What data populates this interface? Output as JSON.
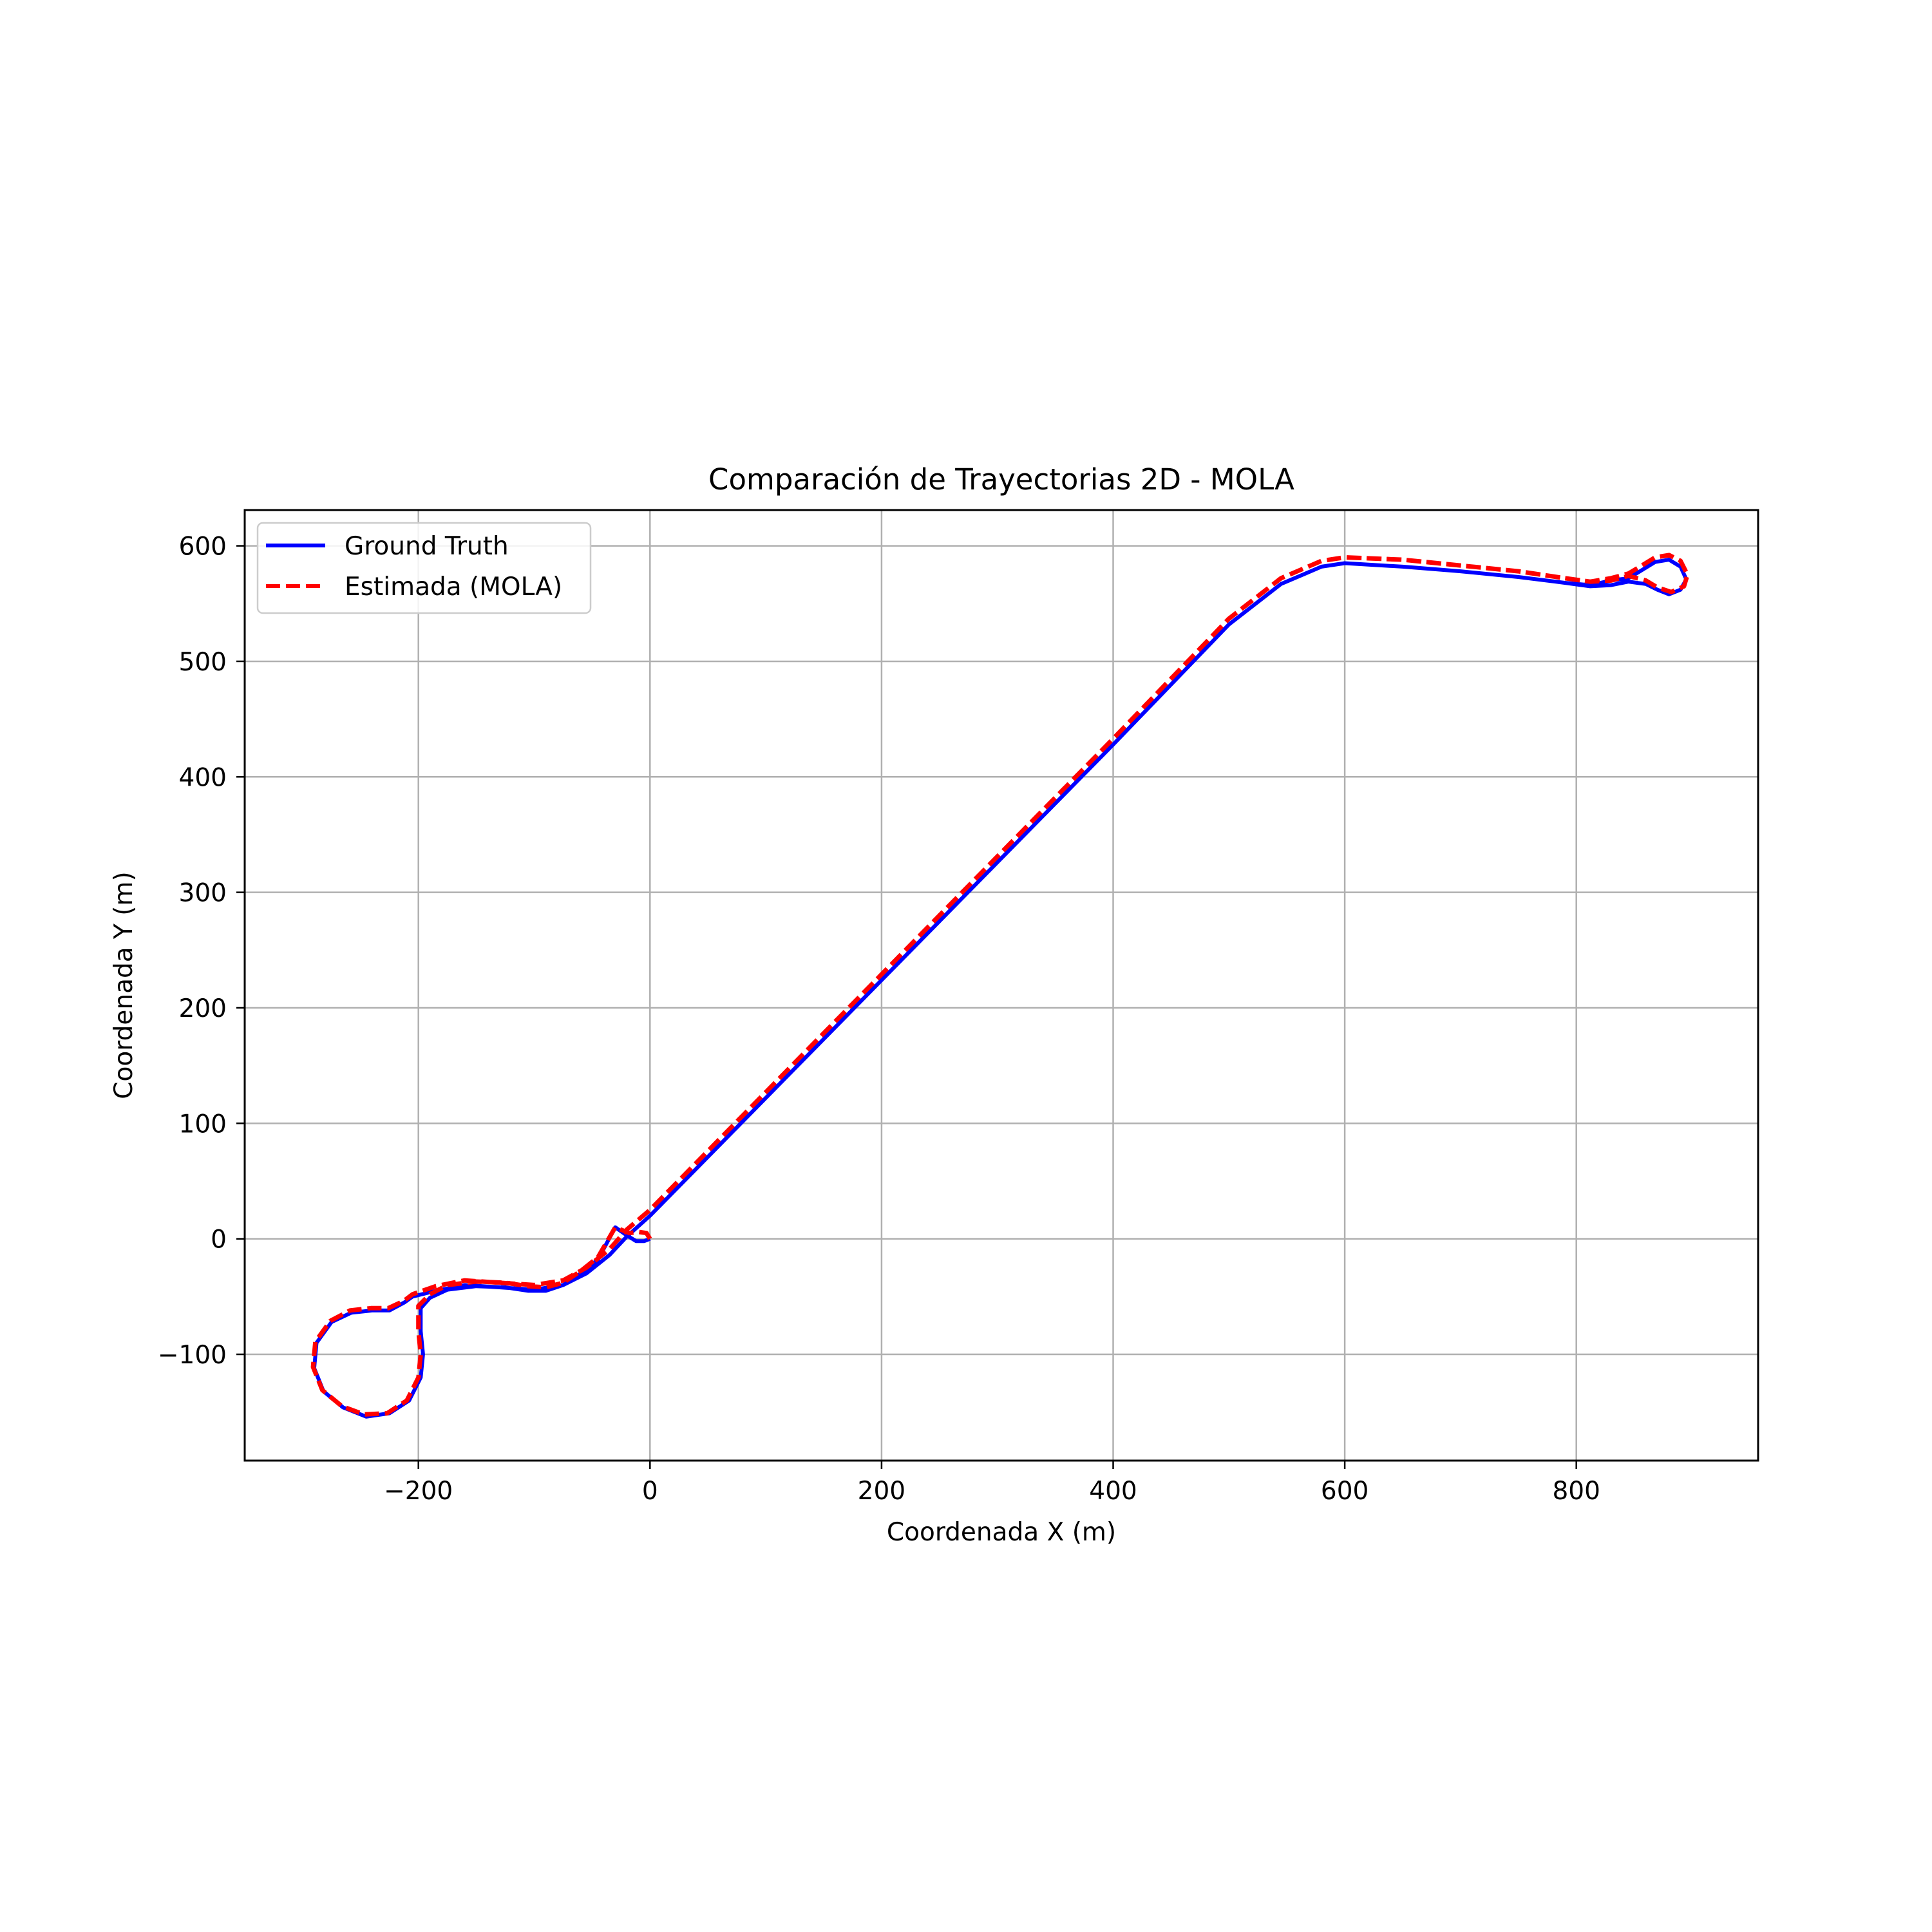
{
  "chart_data": {
    "type": "line",
    "title": "Comparación de Trayectorias 2D - MOLA",
    "xlabel": "Coordenada X (m)",
    "ylabel": "Coordenada Y (m)",
    "xlim": [
      -350,
      957
    ],
    "ylim": [
      -192,
      631
    ],
    "x_ticks": [
      -200,
      0,
      200,
      400,
      600,
      800
    ],
    "y_ticks": [
      -100,
      0,
      100,
      200,
      300,
      400,
      500,
      600
    ],
    "x_tick_labels": [
      "−200",
      "0",
      "200",
      "400",
      "600",
      "800"
    ],
    "y_tick_labels": [
      "−100",
      "0",
      "100",
      "200",
      "300",
      "400",
      "500",
      "600"
    ],
    "grid": true,
    "legend_position": "upper-left",
    "series": [
      {
        "name": "Ground Truth",
        "color": "#0000ff",
        "style": "solid",
        "points": [
          [
            0,
            0
          ],
          [
            -5,
            -2
          ],
          [
            -12,
            -2
          ],
          [
            -20,
            3
          ],
          [
            -30,
            10
          ],
          [
            -45,
            -18
          ],
          [
            -60,
            -30
          ],
          [
            -75,
            -40
          ],
          [
            -90,
            -45
          ],
          [
            -105,
            -45
          ],
          [
            -125,
            -42
          ],
          [
            -150,
            -41
          ],
          [
            -175,
            -44
          ],
          [
            -190,
            -51
          ],
          [
            -198,
            -60
          ],
          [
            -198,
            -80
          ],
          [
            -196,
            -100
          ],
          [
            -198,
            -120
          ],
          [
            -208,
            -140
          ],
          [
            -225,
            -151
          ],
          [
            -245,
            -154
          ],
          [
            -265,
            -146
          ],
          [
            -282,
            -132
          ],
          [
            -290,
            -112
          ],
          [
            -288,
            -90
          ],
          [
            -275,
            -72
          ],
          [
            -258,
            -64
          ],
          [
            -240,
            -62
          ],
          [
            -225,
            -62
          ],
          [
            -212,
            -55
          ],
          [
            -205,
            -50
          ],
          [
            -185,
            -45
          ],
          [
            -160,
            -40
          ],
          [
            -130,
            -42
          ],
          [
            -100,
            -44
          ],
          [
            -75,
            -40
          ],
          [
            -55,
            -30
          ],
          [
            -35,
            -14
          ],
          [
            -20,
            2
          ],
          [
            0,
            20
          ],
          [
            100,
            122
          ],
          [
            200,
            224
          ],
          [
            300,
            326
          ],
          [
            400,
            428
          ],
          [
            500,
            532
          ],
          [
            545,
            567
          ],
          [
            580,
            582
          ],
          [
            600,
            585
          ],
          [
            650,
            582
          ],
          [
            700,
            578
          ],
          [
            750,
            573
          ],
          [
            790,
            568
          ],
          [
            812,
            565
          ],
          [
            830,
            566
          ],
          [
            845,
            569
          ],
          [
            860,
            567
          ],
          [
            870,
            562
          ],
          [
            880,
            558
          ],
          [
            890,
            562
          ],
          [
            895,
            571
          ],
          [
            890,
            582
          ],
          [
            880,
            588
          ],
          [
            868,
            586
          ],
          [
            855,
            578
          ],
          [
            845,
            572
          ],
          [
            830,
            570
          ],
          [
            812,
            566
          ],
          [
            790,
            568
          ],
          [
            750,
            573
          ],
          [
            700,
            578
          ],
          [
            650,
            582
          ],
          [
            600,
            585
          ]
        ]
      },
      {
        "name": "Estimada (MOLA)",
        "color": "#ff0000",
        "style": "dashed",
        "points": [
          [
            0,
            0
          ],
          [
            -3,
            5
          ],
          [
            -10,
            6
          ],
          [
            -18,
            5
          ],
          [
            -30,
            10
          ],
          [
            -45,
            -16
          ],
          [
            -60,
            -28
          ],
          [
            -75,
            -38
          ],
          [
            -90,
            -42
          ],
          [
            -105,
            -41
          ],
          [
            -125,
            -38
          ],
          [
            -150,
            -37
          ],
          [
            -175,
            -40
          ],
          [
            -190,
            -48
          ],
          [
            -200,
            -58
          ],
          [
            -200,
            -80
          ],
          [
            -198,
            -100
          ],
          [
            -200,
            -120
          ],
          [
            -210,
            -140
          ],
          [
            -227,
            -151
          ],
          [
            -247,
            -152
          ],
          [
            -266,
            -145
          ],
          [
            -283,
            -131
          ],
          [
            -291,
            -111
          ],
          [
            -289,
            -89
          ],
          [
            -276,
            -71
          ],
          [
            -259,
            -62
          ],
          [
            -241,
            -60
          ],
          [
            -226,
            -60
          ],
          [
            -213,
            -54
          ],
          [
            -205,
            -48
          ],
          [
            -185,
            -41
          ],
          [
            -160,
            -36
          ],
          [
            -130,
            -38
          ],
          [
            -100,
            -40
          ],
          [
            -75,
            -36
          ],
          [
            -55,
            -25
          ],
          [
            -35,
            -9
          ],
          [
            -20,
            8
          ],
          [
            0,
            25
          ],
          [
            100,
            127
          ],
          [
            200,
            229
          ],
          [
            300,
            331
          ],
          [
            400,
            433
          ],
          [
            500,
            537
          ],
          [
            545,
            572
          ],
          [
            580,
            587
          ],
          [
            600,
            590
          ],
          [
            650,
            588
          ],
          [
            700,
            583
          ],
          [
            750,
            578
          ],
          [
            790,
            572
          ],
          [
            812,
            569
          ],
          [
            830,
            570
          ],
          [
            845,
            574
          ],
          [
            860,
            570
          ],
          [
            870,
            564
          ],
          [
            882,
            560
          ],
          [
            893,
            565
          ],
          [
            896,
            575
          ],
          [
            890,
            587
          ],
          [
            880,
            592
          ],
          [
            868,
            590
          ],
          [
            855,
            582
          ],
          [
            845,
            576
          ],
          [
            830,
            572
          ],
          [
            812,
            569
          ],
          [
            790,
            572
          ],
          [
            750,
            578
          ],
          [
            700,
            583
          ],
          [
            650,
            588
          ],
          [
            600,
            590
          ]
        ]
      }
    ]
  }
}
